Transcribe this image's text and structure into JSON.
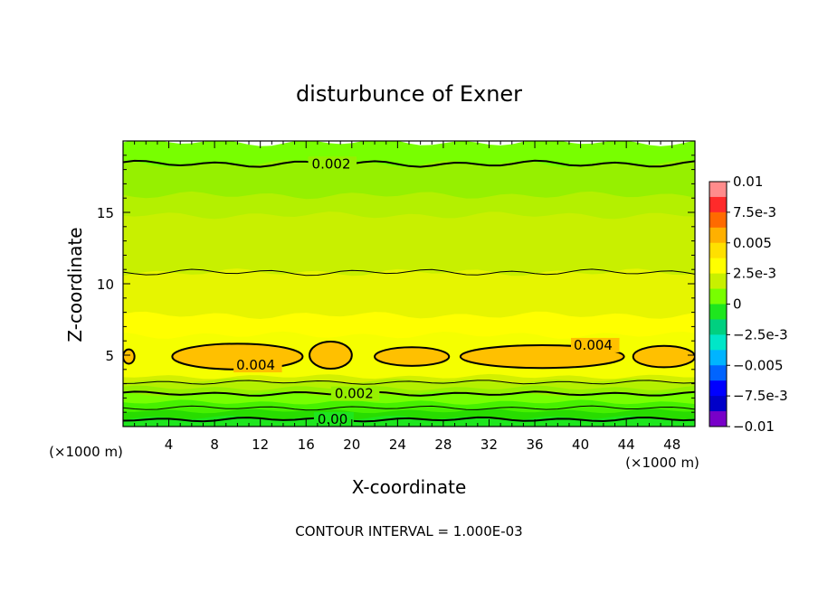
{
  "chart_data": {
    "type": "heatmap",
    "title": "disturbunce of Exner",
    "xlabel": "X-coordinate",
    "ylabel": "Z-coordinate",
    "x_unit": "(×1000 m)",
    "y_unit": "(×1000 m)",
    "footer": "CONTOUR INTERVAL = 1.000E-03",
    "xlim": [
      0,
      50
    ],
    "ylim": [
      0,
      20
    ],
    "x_ticks": [
      4,
      8,
      12,
      16,
      20,
      24,
      28,
      32,
      36,
      40,
      44,
      48
    ],
    "y_ticks": [
      5,
      10,
      15
    ],
    "contour_interval": 0.001,
    "colorbar": {
      "range": [
        -0.01,
        0.01
      ],
      "labels": [
        "0.01",
        "7.5e-3",
        "0.005",
        "2.5e-3",
        "0",
        "-2.5e-3",
        "-0.005",
        "-7.5e-3",
        "-0.01"
      ],
      "colors": [
        "#ff8c8c",
        "#ff2a2a",
        "#ff6a00",
        "#ffb000",
        "#ffe000",
        "#ffff00",
        "#c8f000",
        "#78ff00",
        "#1ee61e",
        "#00d080",
        "#00e6c8",
        "#00b4ff",
        "#0064ff",
        "#0000ff",
        "#0000c8",
        "#7800c8"
      ]
    },
    "bands": [
      {
        "z": 19.9,
        "value": 0.0018,
        "color": "#78ff00"
      },
      {
        "z": 18.4,
        "value": 0.0022,
        "color": "#96f000"
      },
      {
        "z": 16.2,
        "value": 0.0027,
        "color": "#b4f000"
      },
      {
        "z": 14.8,
        "value": 0.0027,
        "color": "#c8f000"
      },
      {
        "z": 10.8,
        "value": 0.0033,
        "color": "#e6f500"
      },
      {
        "z": 7.8,
        "value": 0.0038,
        "color": "#ffff00"
      },
      {
        "z": 6.4,
        "value": 0.0038,
        "color": "#f5ff00"
      },
      {
        "z": 4.3,
        "value": 0.0038,
        "color": "#f5ff00"
      },
      {
        "z": 3.5,
        "value": 0.0031,
        "color": "#d2f000"
      },
      {
        "z": 3.2,
        "value": 0.0026,
        "color": "#b4f000"
      },
      {
        "z": 2.7,
        "value": 0.0022,
        "color": "#96f000"
      },
      {
        "z": 2.3,
        "value": 0.0018,
        "color": "#78ff00"
      },
      {
        "z": 1.7,
        "value": 0.0013,
        "color": "#46f000"
      },
      {
        "z": 1.1,
        "value": 0.0007,
        "color": "#28dc00"
      },
      {
        "z": 0.6,
        "value": 0.0002,
        "color": "#1ee61e"
      }
    ],
    "contour_lines": [
      {
        "z": 18.4,
        "level": 0.002,
        "label": "0.002",
        "label_x": 16.5,
        "bold": true
      },
      {
        "z": 10.8,
        "level": 0.003,
        "label": "",
        "label_x": null,
        "bold": false
      },
      {
        "z": 3.1,
        "level": 0.003,
        "label": "",
        "label_x": null,
        "bold": false
      },
      {
        "z": 2.3,
        "level": 0.002,
        "label": "0.002",
        "label_x": 18.5,
        "bold": true
      },
      {
        "z": 1.3,
        "level": 0.001,
        "label": "",
        "label_x": null,
        "bold": false
      },
      {
        "z": 0.5,
        "level": 0.0,
        "label": "0.00",
        "label_x": 17.0,
        "bold": true
      }
    ],
    "cells_0.004": [
      {
        "x0": 4.3,
        "x1": 15.7,
        "zc": 4.9,
        "h": 1.8
      },
      {
        "x0": 16.3,
        "x1": 20.0,
        "zc": 5.0,
        "h": 1.9
      },
      {
        "x0": 22.0,
        "x1": 28.5,
        "zc": 4.9,
        "h": 1.3
      },
      {
        "x0": 29.5,
        "x1": 43.8,
        "zc": 4.9,
        "h": 1.6
      },
      {
        "x0": 44.6,
        "x1": 50.0,
        "zc": 4.9,
        "h": 1.5
      },
      {
        "x0": 0.0,
        "x1": 1.0,
        "zc": 4.9,
        "h": 1.0
      }
    ],
    "cell_labels": [
      {
        "text": "0.004",
        "x": 9.9,
        "z": 4.3
      },
      {
        "text": "0.004",
        "x": 39.4,
        "z": 5.7
      }
    ]
  }
}
